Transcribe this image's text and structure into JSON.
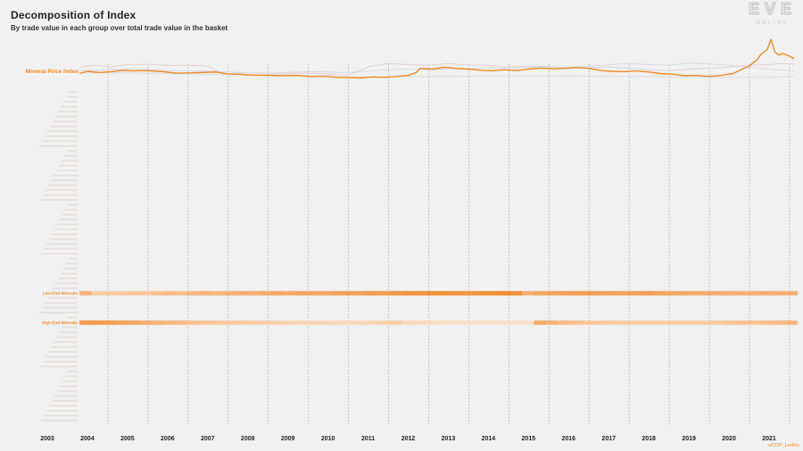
{
  "title": "Decomposition of Index",
  "subtitle": "By trade value in each group over total trade value in the basket",
  "logo": {
    "main": "EVE",
    "sub": "ONLINE"
  },
  "credit": "u/CCP_Lerikio",
  "colors": {
    "index": "#f08a24",
    "faint_lines": [
      "#e3cfd6",
      "#d8d8e4",
      "#dcdcdc"
    ],
    "heat_low": "#fbe5d2",
    "heat_high": "#ef8a30",
    "grid": "#9a9a9a",
    "background": "#f1f1f1"
  },
  "chart_data": {
    "type": "line",
    "title": "Decomposition of Index",
    "subtitle": "By trade value in each group over total trade value in the basket",
    "x_axis": {
      "ticks": [
        "2003",
        "2004",
        "2005",
        "2006",
        "2007",
        "2008",
        "2009",
        "2010",
        "2011",
        "2012",
        "2013",
        "2014",
        "2015",
        "2016",
        "2017",
        "2018",
        "2019",
        "2020",
        "2021"
      ],
      "range": [
        2003.0,
        2021.7
      ],
      "grid": "vertical dashed at each year"
    },
    "index_label": "Mineral Price Index",
    "index_series": {
      "name": "Mineral Price Index",
      "x": [
        2003.8,
        2004.0,
        2004.3,
        2004.6,
        2004.9,
        2005.1,
        2005.5,
        2005.9,
        2006.2,
        2006.6,
        2006.9,
        2007.2,
        2007.5,
        2007.8,
        2008.1,
        2008.5,
        2008.9,
        2009.2,
        2009.6,
        2009.9,
        2010.2,
        2010.5,
        2010.8,
        2011.1,
        2011.4,
        2011.7,
        2012.0,
        2012.2,
        2012.3,
        2012.6,
        2012.9,
        2013.2,
        2013.5,
        2013.8,
        2014.1,
        2014.4,
        2014.7,
        2015.0,
        2015.3,
        2015.6,
        2015.9,
        2016.2,
        2016.5,
        2016.8,
        2017.1,
        2017.4,
        2017.7,
        2018.0,
        2018.3,
        2018.6,
        2018.9,
        2019.2,
        2019.5,
        2019.8,
        2020.1,
        2020.3,
        2020.5,
        2020.7,
        2020.8,
        2020.95,
        2021.05,
        2021.15,
        2021.25,
        2021.35,
        2021.5,
        2021.62
      ],
      "values": [
        0.98,
        1.04,
        1.01,
        1.03,
        1.07,
        1.05,
        1.06,
        1.03,
        0.99,
        1.0,
        1.01,
        1.02,
        0.97,
        0.96,
        0.94,
        0.93,
        0.92,
        0.93,
        0.9,
        0.91,
        0.88,
        0.87,
        0.86,
        0.89,
        0.88,
        0.9,
        0.93,
        1.01,
        1.12,
        1.1,
        1.15,
        1.12,
        1.1,
        1.07,
        1.05,
        1.08,
        1.06,
        1.1,
        1.13,
        1.11,
        1.12,
        1.14,
        1.12,
        1.06,
        1.04,
        1.03,
        1.05,
        1.02,
        0.98,
        0.96,
        0.92,
        0.93,
        0.9,
        0.93,
        0.98,
        1.08,
        1.18,
        1.35,
        1.5,
        1.62,
        1.9,
        1.55,
        1.48,
        1.52,
        1.45,
        1.38
      ]
    },
    "background_series": [
      {
        "x": [
          2003.8,
          2004.2,
          2004.6,
          2005.0,
          2005.5,
          2006.0,
          2006.5,
          2007.0,
          2007.4,
          2008.0,
          2008.5,
          2009.0,
          2009.5,
          2010.0,
          2010.5,
          2011.0,
          2011.5,
          2012.0,
          2012.5,
          2013.0,
          2013.5,
          2014.0,
          2014.5,
          2015.0,
          2015.5,
          2016.0,
          2016.5,
          2017.0,
          2017.5,
          2018.0,
          2018.5,
          2019.0,
          2019.5,
          2020.0,
          2020.5,
          2021.0,
          2021.3,
          2021.62
        ],
        "values": [
          1.15,
          1.2,
          1.16,
          1.22,
          1.23,
          1.2,
          1.2,
          1.18,
          0.96,
          0.93,
          0.95,
          0.98,
          1.0,
          0.97,
          0.92,
          1.16,
          1.25,
          1.22,
          1.2,
          1.25,
          1.21,
          1.2,
          1.16,
          1.18,
          1.17,
          1.14,
          1.13,
          1.16,
          1.12,
          1.08,
          1.06,
          1.1,
          1.12,
          1.15,
          1.2,
          1.22,
          1.25,
          1.24
        ]
      },
      {
        "x": [
          2003.8,
          2004.5,
          2005.0,
          2005.5,
          2006.0,
          2006.5,
          2007.0,
          2007.5,
          2008.0,
          2008.5,
          2009.0,
          2009.5,
          2010.0,
          2010.5,
          2011.0,
          2011.5,
          2012.0,
          2012.5,
          2013.0,
          2013.5,
          2014.0,
          2014.5,
          2015.0,
          2015.5,
          2016.0,
          2016.5,
          2017.0,
          2017.5,
          2018.0,
          2018.5,
          2019.0,
          2019.5,
          2020.0,
          2020.5,
          2021.0,
          2021.62
        ],
        "values": [
          1.05,
          1.08,
          1.1,
          1.09,
          1.06,
          1.05,
          1.05,
          1.02,
          1.0,
          0.99,
          1.01,
          1.03,
          1.02,
          1.0,
          1.05,
          1.08,
          1.1,
          1.08,
          1.12,
          1.1,
          1.14,
          1.12,
          1.15,
          1.16,
          1.14,
          1.18,
          1.22,
          1.25,
          1.22,
          1.2,
          1.26,
          1.24,
          1.2,
          1.15,
          1.1,
          1.05
        ]
      },
      {
        "x": [
          2003.8,
          2005.0,
          2006.0,
          2007.0,
          2008.0,
          2009.0,
          2010.0,
          2011.0,
          2012.0,
          2013.0,
          2014.0,
          2015.0,
          2016.0,
          2017.0,
          2018.0,
          2019.0,
          2020.0,
          2021.0,
          2021.62
        ],
        "values": [
          1.0,
          1.0,
          0.98,
          0.96,
          0.94,
          0.93,
          0.9,
          0.88,
          0.9,
          0.9,
          0.91,
          0.92,
          0.91,
          0.9,
          0.9,
          0.89,
          0.88,
          0.88,
          0.9
        ]
      }
    ],
    "group_rows": {
      "count": 68,
      "labelled": [
        {
          "row": 41,
          "label": "Low-End Minerals"
        },
        {
          "row": 47,
          "label": "High-End Minerals"
        }
      ]
    },
    "heatmaps": [
      {
        "name": "Low-End Minerals",
        "row": 41,
        "x_range": [
          2003.8,
          2021.7
        ],
        "intensity": [
          0.55,
          0.25,
          0.28,
          0.3,
          0.35,
          0.32,
          0.4,
          0.45,
          0.42,
          0.48,
          0.55,
          0.5,
          0.58,
          0.62,
          0.6,
          0.66,
          0.7,
          0.65,
          0.72,
          0.7,
          0.68,
          0.74,
          0.78,
          0.75,
          0.82,
          0.78,
          0.85,
          0.9,
          0.88,
          0.92,
          0.95,
          0.9,
          0.88,
          0.92,
          0.95,
          0.97,
          0.93,
          0.6,
          0.7,
          0.72,
          0.75,
          0.78,
          0.8,
          0.76,
          0.74,
          0.72,
          0.75,
          0.78,
          0.72,
          0.7,
          0.68,
          0.66,
          0.64,
          0.62,
          0.6,
          0.58,
          0.6,
          0.62,
          0.58,
          0.6
        ]
      },
      {
        "name": "High-End Minerals",
        "row": 47,
        "x_range": [
          2003.8,
          2021.7
        ],
        "intensity": [
          0.8,
          0.82,
          0.78,
          0.72,
          0.7,
          0.62,
          0.55,
          0.5,
          0.45,
          0.4,
          0.36,
          0.32,
          0.3,
          0.27,
          0.25,
          0.24,
          0.22,
          0.2,
          0.18,
          0.17,
          0.16,
          0.15,
          0.14,
          0.15,
          0.18,
          0.22,
          0.25,
          0.15,
          0.12,
          0.1,
          0.08,
          0.07,
          0.06,
          0.07,
          0.08,
          0.06,
          0.05,
          0.05,
          0.65,
          0.55,
          0.45,
          0.4,
          0.35,
          0.3,
          0.28,
          0.26,
          0.25,
          0.24,
          0.26,
          0.28,
          0.25,
          0.24,
          0.26,
          0.3,
          0.35,
          0.4,
          0.38,
          0.42,
          0.45,
          0.5
        ]
      }
    ]
  }
}
